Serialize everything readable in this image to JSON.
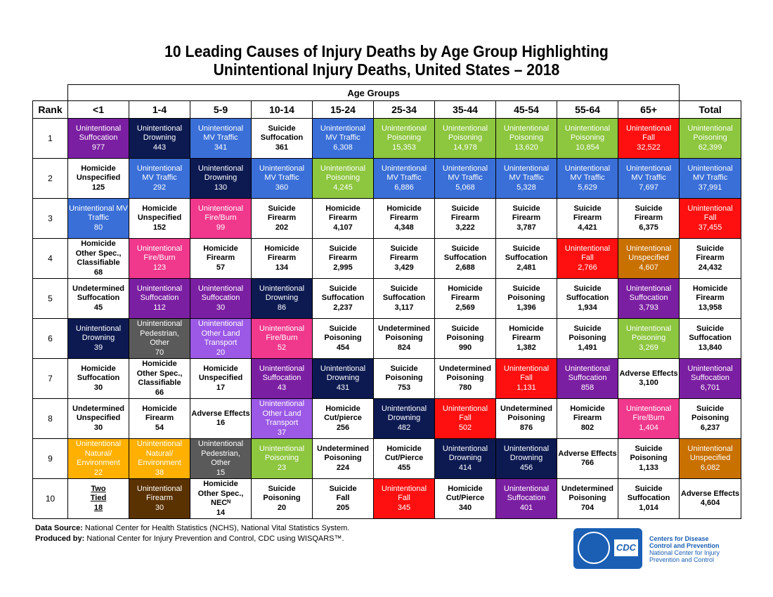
{
  "title_line1": "10 Leading Causes of Injury Deaths by Age Group Highlighting",
  "title_line2": "Unintentional Injury Deaths, United States – 2018",
  "age_groups_label": "Age Groups",
  "rank_header": "Rank",
  "columns": [
    "<1",
    "1-4",
    "5-9",
    "10-14",
    "15-24",
    "25-34",
    "35-44",
    "45-54",
    "55-64",
    "65+",
    "Total"
  ],
  "colors": {
    "white": "#ffffff",
    "suffocation": "#7b1fa2",
    "drowning": "#0d1a52",
    "mv_traffic": "#3a6fd8",
    "poisoning": "#8dc63f",
    "fall": "#ff1010",
    "fire_burn": "#f0388c",
    "natural_env": "#ffb000",
    "pedestrian": "#5a5a5a",
    "other_land": "#9b59e6",
    "firearm": "#5a3100",
    "unspecified": "#c87000"
  },
  "rows": [
    {
      "rank": "1",
      "cells": [
        {
          "lines": [
            "Unintentional",
            "Suffocation",
            "977"
          ],
          "c": "suffocation"
        },
        {
          "lines": [
            "Unintentional",
            "Drowning",
            "443"
          ],
          "c": "drowning"
        },
        {
          "lines": [
            "Unintentional",
            "MV Traffic",
            "341"
          ],
          "c": "mv_traffic"
        },
        {
          "lines": [
            "Suicide",
            "Suffocation",
            "361"
          ],
          "c": "white"
        },
        {
          "lines": [
            "Unintentional",
            "MV Traffic",
            "6,308"
          ],
          "c": "mv_traffic"
        },
        {
          "lines": [
            "Unintentional",
            "Poisoning",
            "15,353"
          ],
          "c": "poisoning"
        },
        {
          "lines": [
            "Unintentional",
            "Poisoning",
            "14,978"
          ],
          "c": "poisoning"
        },
        {
          "lines": [
            "Unintentional",
            "Poisoning",
            "13,620"
          ],
          "c": "poisoning"
        },
        {
          "lines": [
            "Unintentional",
            "Poisoning",
            "10,854"
          ],
          "c": "poisoning"
        },
        {
          "lines": [
            "Unintentional",
            "Fall",
            "32,522"
          ],
          "c": "fall"
        },
        {
          "lines": [
            "Unintentional",
            "Poisoning",
            "62,399"
          ],
          "c": "poisoning"
        }
      ]
    },
    {
      "rank": "2",
      "cells": [
        {
          "lines": [
            "Homicide",
            "Unspecified",
            "125"
          ],
          "c": "white"
        },
        {
          "lines": [
            "Unintentional",
            "MV Traffic",
            "292"
          ],
          "c": "mv_traffic"
        },
        {
          "lines": [
            "Unintentional",
            "Drowning",
            "130"
          ],
          "c": "drowning"
        },
        {
          "lines": [
            "Unintentional",
            "MV Traffic",
            "360"
          ],
          "c": "mv_traffic"
        },
        {
          "lines": [
            "Unintentional",
            "Poisoning",
            "4,245"
          ],
          "c": "poisoning"
        },
        {
          "lines": [
            "Unintentional",
            "MV Traffic",
            "6,886"
          ],
          "c": "mv_traffic"
        },
        {
          "lines": [
            "Unintentional",
            "MV Traffic",
            "5,068"
          ],
          "c": "mv_traffic"
        },
        {
          "lines": [
            "Unintentional",
            "MV Traffic",
            "5,328"
          ],
          "c": "mv_traffic"
        },
        {
          "lines": [
            "Unintentional",
            "MV Traffic",
            "5,629"
          ],
          "c": "mv_traffic"
        },
        {
          "lines": [
            "Unintentional",
            "MV Traffic",
            "7,697"
          ],
          "c": "mv_traffic"
        },
        {
          "lines": [
            "Unintentional",
            "MV Traffic",
            "37,991"
          ],
          "c": "mv_traffic"
        }
      ]
    },
    {
      "rank": "3",
      "cells": [
        {
          "lines": [
            "Unintentional MV",
            "Traffic",
            "80"
          ],
          "c": "mv_traffic"
        },
        {
          "lines": [
            "Homicide",
            "Unspecified",
            "152"
          ],
          "c": "white"
        },
        {
          "lines": [
            "Unintentional",
            "Fire/Burn",
            "99"
          ],
          "c": "fire_burn"
        },
        {
          "lines": [
            "Suicide",
            "Firearm",
            "202"
          ],
          "c": "white"
        },
        {
          "lines": [
            "Homicide",
            "Firearm",
            "4,107"
          ],
          "c": "white"
        },
        {
          "lines": [
            "Homicide",
            "Firearm",
            "4,348"
          ],
          "c": "white"
        },
        {
          "lines": [
            "Suicide",
            "Firearm",
            "3,222"
          ],
          "c": "white"
        },
        {
          "lines": [
            "Suicide",
            "Firearm",
            "3,787"
          ],
          "c": "white"
        },
        {
          "lines": [
            "Suicide",
            "Firearm",
            "4,421"
          ],
          "c": "white"
        },
        {
          "lines": [
            "Suicide",
            "Firearm",
            "6,375"
          ],
          "c": "white"
        },
        {
          "lines": [
            "Unintentional",
            "Fall",
            "37,455"
          ],
          "c": "fall"
        }
      ]
    },
    {
      "rank": "4",
      "cells": [
        {
          "lines": [
            "Homicide",
            "Other Spec.,",
            "Classifiable",
            "68"
          ],
          "c": "white"
        },
        {
          "lines": [
            "Unintentional",
            "Fire/Burn",
            "123"
          ],
          "c": "fire_burn"
        },
        {
          "lines": [
            "Homicide",
            "Firearm",
            "57"
          ],
          "c": "white"
        },
        {
          "lines": [
            "Homicide",
            "Firearm",
            "134"
          ],
          "c": "white"
        },
        {
          "lines": [
            "Suicide",
            "Firearm",
            "2,995"
          ],
          "c": "white"
        },
        {
          "lines": [
            "Suicide",
            "Firearm",
            "3,429"
          ],
          "c": "white"
        },
        {
          "lines": [
            "Suicide",
            "Suffocation",
            "2,688"
          ],
          "c": "white"
        },
        {
          "lines": [
            "Suicide",
            "Suffocation",
            "2,481"
          ],
          "c": "white"
        },
        {
          "lines": [
            "Unintentional",
            "Fall",
            "2,766"
          ],
          "c": "fall"
        },
        {
          "lines": [
            "Unintentional",
            "Unspecified",
            "4,607"
          ],
          "c": "unspecified"
        },
        {
          "lines": [
            "Suicide",
            "Firearm",
            "24,432"
          ],
          "c": "white"
        }
      ]
    },
    {
      "rank": "5",
      "cells": [
        {
          "lines": [
            "Undetermined",
            "Suffocation",
            "45"
          ],
          "c": "white"
        },
        {
          "lines": [
            "Unintentional",
            "Suffocation",
            "112"
          ],
          "c": "suffocation"
        },
        {
          "lines": [
            "Unintentional",
            "Suffocation",
            "30"
          ],
          "c": "suffocation"
        },
        {
          "lines": [
            "Unintentional",
            "Drowning",
            "86"
          ],
          "c": "drowning"
        },
        {
          "lines": [
            "Suicide",
            "Suffocation",
            "2,237"
          ],
          "c": "white"
        },
        {
          "lines": [
            "Suicide",
            "Suffocation",
            "3,117"
          ],
          "c": "white"
        },
        {
          "lines": [
            "Homicide",
            "Firearm",
            "2,569"
          ],
          "c": "white"
        },
        {
          "lines": [
            "Suicide",
            "Poisoning",
            "1,396"
          ],
          "c": "white"
        },
        {
          "lines": [
            "Suicide",
            "Suffocation",
            "1,934"
          ],
          "c": "white"
        },
        {
          "lines": [
            "Unintentional",
            "Suffocation",
            "3,793"
          ],
          "c": "suffocation"
        },
        {
          "lines": [
            "Homicide",
            "Firearm",
            "13,958"
          ],
          "c": "white"
        }
      ]
    },
    {
      "rank": "6",
      "cells": [
        {
          "lines": [
            "Unintentional",
            "Drowning",
            "39"
          ],
          "c": "drowning"
        },
        {
          "lines": [
            "Unintentional",
            "Pedestrian,",
            "Other",
            "70"
          ],
          "c": "pedestrian"
        },
        {
          "lines": [
            "Unintentional",
            "Other Land",
            "Transport",
            "20"
          ],
          "c": "other_land"
        },
        {
          "lines": [
            "Unintentional",
            "Fire/Burn",
            "52"
          ],
          "c": "fire_burn"
        },
        {
          "lines": [
            "Suicide",
            "Poisoning",
            "454"
          ],
          "c": "white"
        },
        {
          "lines": [
            "Undetermined",
            "Poisoning",
            "824"
          ],
          "c": "white"
        },
        {
          "lines": [
            "Suicide",
            "Poisoning",
            "990"
          ],
          "c": "white"
        },
        {
          "lines": [
            "Homicide",
            "Firearm",
            "1,382"
          ],
          "c": "white"
        },
        {
          "lines": [
            "Suicide",
            "Poisoning",
            "1,491"
          ],
          "c": "white"
        },
        {
          "lines": [
            "Unintentional",
            "Poisoning",
            "3,269"
          ],
          "c": "poisoning"
        },
        {
          "lines": [
            "Suicide",
            "Suffocation",
            "13,840"
          ],
          "c": "white"
        }
      ]
    },
    {
      "rank": "7",
      "cells": [
        {
          "lines": [
            "Homicide",
            "Suffocation",
            "30"
          ],
          "c": "white"
        },
        {
          "lines": [
            "Homicide",
            "Other Spec.,",
            "Classifiable",
            "66"
          ],
          "c": "white"
        },
        {
          "lines": [
            "Homicide",
            "Unspecified",
            "17"
          ],
          "c": "white"
        },
        {
          "lines": [
            "Unintentional",
            "Suffocation",
            "43"
          ],
          "c": "suffocation"
        },
        {
          "lines": [
            "Unintentional",
            "Drowning",
            "431"
          ],
          "c": "drowning"
        },
        {
          "lines": [
            "Suicide",
            "Poisoning",
            "753"
          ],
          "c": "white"
        },
        {
          "lines": [
            "Undetermined",
            "Poisoning",
            "780"
          ],
          "c": "white"
        },
        {
          "lines": [
            "Unintentional",
            "Fall",
            "1,131"
          ],
          "c": "fall"
        },
        {
          "lines": [
            "Unintentional",
            "Suffocation",
            "858"
          ],
          "c": "suffocation"
        },
        {
          "lines": [
            "Adverse Effects",
            "3,100"
          ],
          "c": "white"
        },
        {
          "lines": [
            "Unintentional",
            "Suffocation",
            "6,701"
          ],
          "c": "suffocation"
        }
      ]
    },
    {
      "rank": "8",
      "cells": [
        {
          "lines": [
            "Undetermined",
            "Unspecified",
            "30"
          ],
          "c": "white"
        },
        {
          "lines": [
            "Homicide",
            "Firearm",
            "54"
          ],
          "c": "white"
        },
        {
          "lines": [
            "Adverse Effects",
            "16"
          ],
          "c": "white"
        },
        {
          "lines": [
            "Unintentional",
            "Other Land",
            "Transport",
            "37"
          ],
          "c": "other_land"
        },
        {
          "lines": [
            "Homicide",
            "Cut/pierce",
            "256"
          ],
          "c": "white"
        },
        {
          "lines": [
            "Unintentional",
            "Drowning",
            "482"
          ],
          "c": "drowning"
        },
        {
          "lines": [
            "Unintentional",
            "Fall",
            "502"
          ],
          "c": "fall"
        },
        {
          "lines": [
            "Undetermined",
            "Poisoning",
            "876"
          ],
          "c": "white"
        },
        {
          "lines": [
            "Homicide",
            "Firearm",
            "802"
          ],
          "c": "white"
        },
        {
          "lines": [
            "Unintentional",
            "Fire/Burn",
            "1,404"
          ],
          "c": "fire_burn"
        },
        {
          "lines": [
            "Suicide",
            "Poisoning",
            "6,237"
          ],
          "c": "white"
        }
      ]
    },
    {
      "rank": "9",
      "cells": [
        {
          "lines": [
            "Unintentional",
            "Natural/",
            "Environment",
            "22"
          ],
          "c": "natural_env"
        },
        {
          "lines": [
            "Unintentional",
            "Natural/",
            "Environment",
            "38"
          ],
          "c": "natural_env"
        },
        {
          "lines": [
            "Unintentional",
            "Pedestrian,",
            "Other",
            "15"
          ],
          "c": "pedestrian"
        },
        {
          "lines": [
            "Unintentional",
            "Poisoning",
            "23"
          ],
          "c": "poisoning"
        },
        {
          "lines": [
            "Undetermined",
            "Poisoning",
            "224"
          ],
          "c": "white"
        },
        {
          "lines": [
            "Homicide",
            "Cut/Pierce",
            "455"
          ],
          "c": "white"
        },
        {
          "lines": [
            "Unintentional",
            "Drowning",
            "414"
          ],
          "c": "drowning"
        },
        {
          "lines": [
            "Unintentional",
            "Drowning",
            "456"
          ],
          "c": "drowning"
        },
        {
          "lines": [
            "Adverse Effects",
            "766"
          ],
          "c": "white"
        },
        {
          "lines": [
            "Suicide",
            "Poisoning",
            "1,133"
          ],
          "c": "white"
        },
        {
          "lines": [
            "Unintentional",
            "Unspecified",
            "6,082"
          ],
          "c": "unspecified"
        }
      ]
    },
    {
      "rank": "10",
      "cells": [
        {
          "lines": [
            "Two",
            "Tied",
            "18"
          ],
          "c": "white",
          "u": true
        },
        {
          "lines": [
            "Unintentional",
            "Firearm",
            "30"
          ],
          "c": "firearm"
        },
        {
          "lines": [
            "Homicide",
            "Other Spec.,",
            "NECᴺ",
            "14"
          ],
          "c": "white"
        },
        {
          "lines": [
            "Suicide",
            "Poisoning",
            "20"
          ],
          "c": "white"
        },
        {
          "lines": [
            "Suicide",
            "Fall",
            "205"
          ],
          "c": "white"
        },
        {
          "lines": [
            "Unintentional",
            "Fall",
            "345"
          ],
          "c": "fall"
        },
        {
          "lines": [
            "Homicide",
            "Cut/Pierce",
            "340"
          ],
          "c": "white"
        },
        {
          "lines": [
            "Unintentional",
            "Suffocation",
            "401"
          ],
          "c": "suffocation"
        },
        {
          "lines": [
            "Undetermined",
            "Poisoning",
            "704"
          ],
          "c": "white"
        },
        {
          "lines": [
            "Suicide",
            "Suffocation",
            "1,014"
          ],
          "c": "white"
        },
        {
          "lines": [
            "Adverse Effects",
            "4,604"
          ],
          "c": "white"
        }
      ]
    }
  ],
  "footer": {
    "source_label": "Data Source:",
    "source_text": " National Center for Health Statistics (NCHS), National Vital Statistics System.",
    "produced_label": "Produced by:",
    "produced_text": "  National Center for Injury Prevention and Control, CDC using WISQARS™."
  },
  "logo": {
    "mark": "CDC",
    "line1": "Centers for Disease",
    "line2": "Control and Prevention",
    "line3": "National Center for Injury",
    "line4": "Prevention and Control"
  }
}
